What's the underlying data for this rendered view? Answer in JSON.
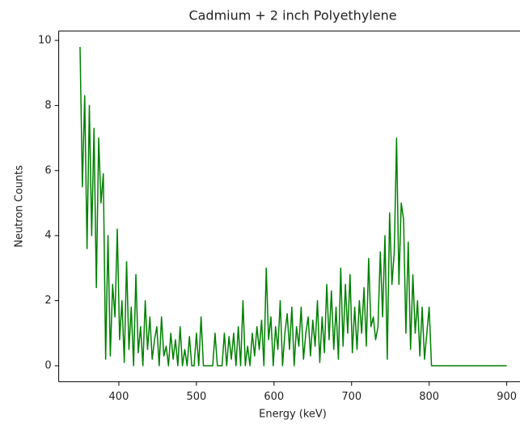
{
  "chart_data": {
    "type": "line",
    "title": "Cadmium + 2 inch Polyethylene",
    "xlabel": "Energy (keV)",
    "ylabel": "Neutron Counts",
    "x": [
      350,
      353,
      356,
      359,
      362,
      365,
      368,
      371,
      374,
      377,
      380,
      383,
      386,
      389,
      392,
      395,
      398,
      401,
      404,
      407,
      410,
      413,
      416,
      419,
      422,
      425,
      428,
      431,
      434,
      437,
      440,
      443,
      446,
      449,
      452,
      455,
      458,
      461,
      464,
      467,
      470,
      473,
      476,
      479,
      482,
      485,
      488,
      491,
      494,
      497,
      500,
      503,
      506,
      509,
      512,
      515,
      518,
      521,
      524,
      527,
      530,
      533,
      536,
      539,
      542,
      545,
      548,
      551,
      554,
      557,
      560,
      563,
      566,
      569,
      572,
      575,
      578,
      581,
      584,
      587,
      590,
      593,
      596,
      599,
      602,
      605,
      608,
      611,
      614,
      617,
      620,
      623,
      626,
      629,
      632,
      635,
      638,
      641,
      644,
      647,
      650,
      653,
      656,
      659,
      662,
      665,
      668,
      671,
      674,
      677,
      680,
      683,
      686,
      689,
      692,
      695,
      698,
      701,
      704,
      707,
      710,
      713,
      716,
      719,
      722,
      725,
      728,
      731,
      734,
      737,
      740,
      743,
      746,
      749,
      752,
      755,
      758,
      761,
      764,
      767,
      770,
      773,
      776,
      779,
      782,
      785,
      788,
      791,
      794,
      797,
      800,
      803,
      806,
      900
    ],
    "series": [
      {
        "name": "Neutron Counts",
        "color": "#008000",
        "values": [
          9.8,
          5.5,
          8.3,
          3.6,
          8.0,
          4.0,
          7.3,
          2.4,
          7.0,
          5.0,
          5.9,
          0.2,
          4.0,
          0.3,
          2.5,
          1.5,
          4.2,
          0.8,
          2.0,
          0.1,
          3.2,
          0.5,
          1.8,
          0.0,
          2.8,
          0.4,
          1.2,
          0.0,
          2.0,
          0.5,
          1.5,
          0.2,
          0.8,
          1.2,
          0.0,
          1.5,
          0.3,
          0.6,
          0.0,
          1.0,
          0.2,
          0.8,
          0.0,
          1.2,
          0.0,
          0.5,
          0.0,
          0.9,
          0.0,
          0.0,
          1.0,
          0.0,
          1.5,
          0.0,
          0.0,
          0.0,
          0.0,
          0.0,
          1.0,
          0.0,
          0.0,
          0.0,
          1.0,
          0.0,
          0.9,
          0.2,
          1.0,
          0.0,
          1.2,
          0.0,
          2.0,
          0.0,
          0.6,
          0.0,
          1.0,
          0.3,
          1.2,
          0.5,
          1.4,
          0.0,
          3.0,
          0.8,
          1.5,
          0.0,
          1.2,
          0.5,
          2.0,
          0.0,
          1.0,
          1.6,
          0.5,
          1.8,
          0.0,
          1.2,
          0.6,
          1.8,
          0.2,
          1.0,
          1.5,
          0.3,
          1.4,
          0.6,
          2.0,
          0.1,
          1.5,
          0.4,
          2.5,
          0.8,
          2.3,
          0.5,
          1.8,
          0.2,
          3.0,
          0.6,
          2.5,
          1.0,
          2.8,
          0.4,
          1.8,
          0.5,
          2.0,
          1.0,
          2.4,
          0.6,
          3.3,
          1.2,
          1.5,
          0.8,
          1.2,
          3.5,
          1.5,
          4.0,
          0.2,
          4.7,
          2.5,
          3.5,
          7.0,
          2.5,
          5.0,
          4.5,
          1.0,
          3.8,
          0.5,
          2.8,
          1.0,
          2.0,
          0.3,
          1.8,
          0.2,
          1.0,
          1.8,
          0.0,
          0.0,
          0.0
        ]
      }
    ],
    "xlim": [
      322.5,
      927.5
    ],
    "ylim": [
      -0.49,
      10.29
    ],
    "xticks": [
      400,
      500,
      600,
      700,
      800,
      900
    ],
    "yticks": [
      0,
      2,
      4,
      6,
      8,
      10
    ]
  }
}
